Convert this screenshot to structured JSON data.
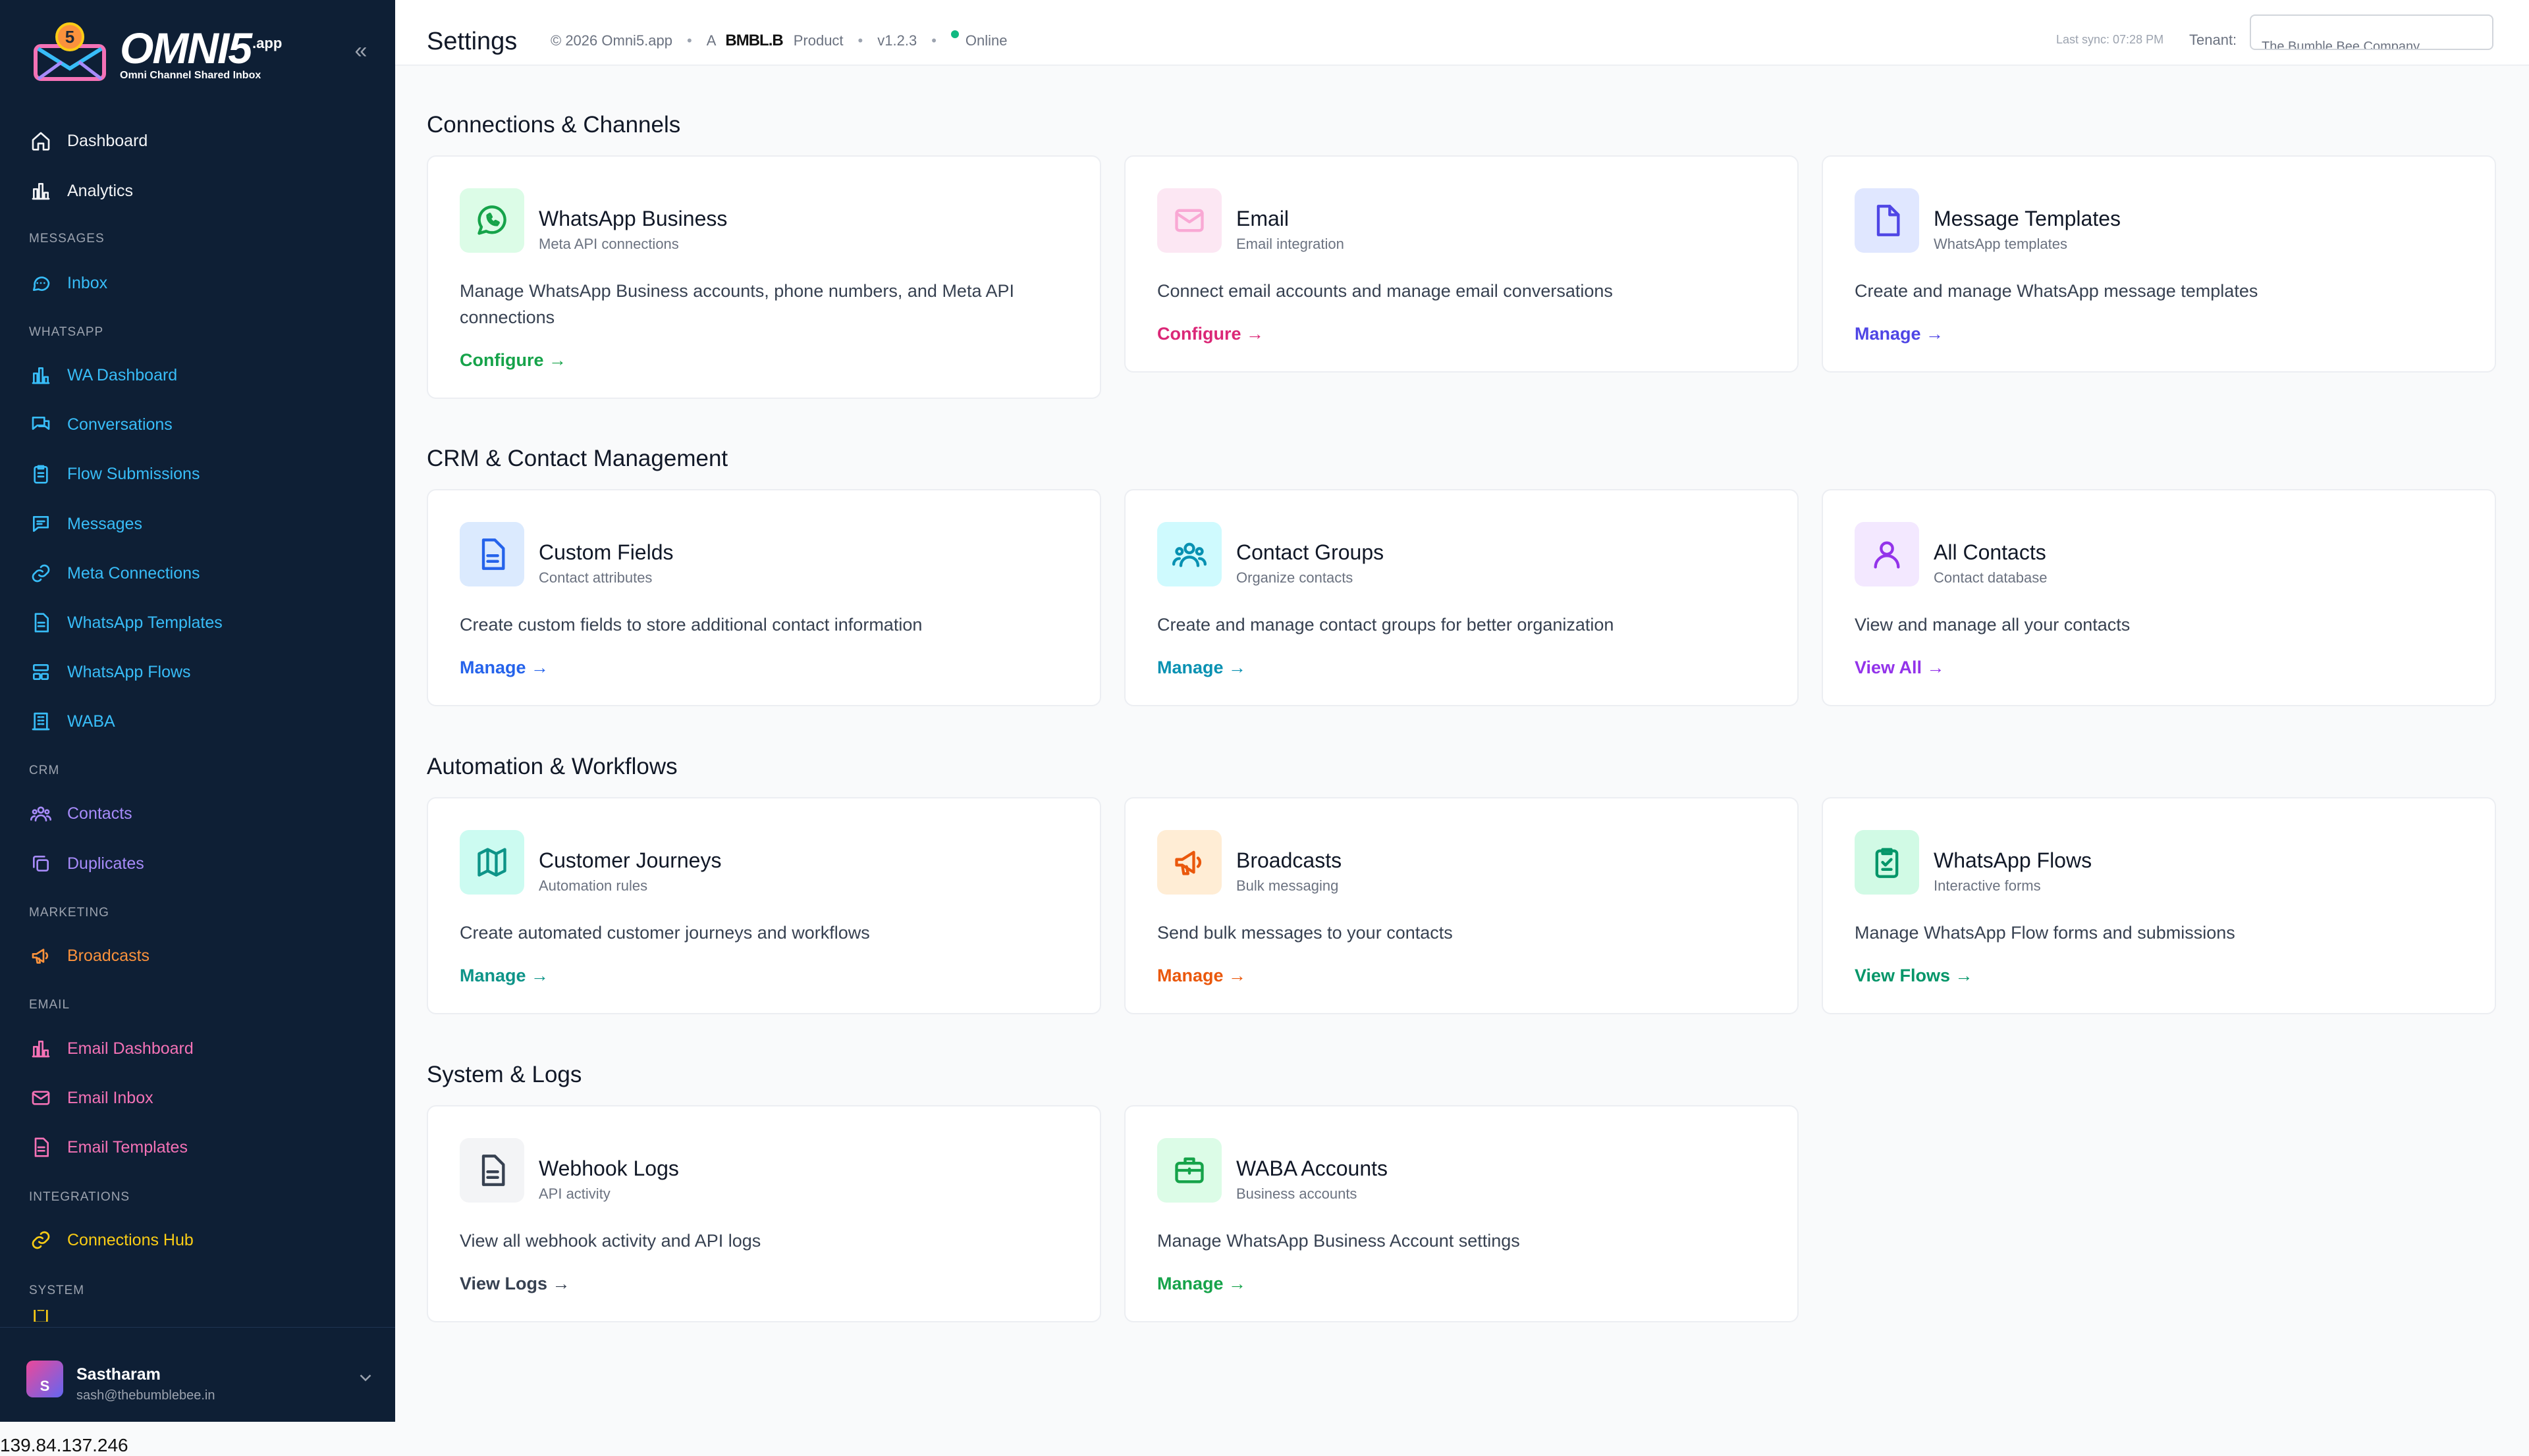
{
  "brand": {
    "name": "OMNI5",
    "suffix": ".app",
    "tagline": "Omni Channel Shared Inbox",
    "badge": "5"
  },
  "sidebar": {
    "top_items": [
      {
        "label": "Dashboard",
        "icon": "home-icon"
      },
      {
        "label": "Analytics",
        "icon": "bar-chart-icon"
      }
    ],
    "sections": {
      "messages": "MESSAGES",
      "whatsapp": "WHATSAPP",
      "crm": "CRM",
      "marketing": "MARKETING",
      "email": "EMAIL",
      "integrations": "INTEGRATIONS",
      "system": "SYSTEM"
    },
    "messages_items": [
      {
        "label": "Inbox",
        "icon": "chat-icon"
      }
    ],
    "whatsapp_items": [
      {
        "label": "WA Dashboard",
        "icon": "bar-chart-icon"
      },
      {
        "label": "Conversations",
        "icon": "conversations-icon"
      },
      {
        "label": "Flow Submissions",
        "icon": "clipboard-icon"
      },
      {
        "label": "Messages",
        "icon": "message-icon"
      },
      {
        "label": "Meta Connections",
        "icon": "link-icon"
      },
      {
        "label": "WhatsApp Templates",
        "icon": "document-icon"
      },
      {
        "label": "WhatsApp Flows",
        "icon": "flows-icon"
      },
      {
        "label": "WABA",
        "icon": "building-icon"
      }
    ],
    "crm_items": [
      {
        "label": "Contacts",
        "icon": "users-icon"
      },
      {
        "label": "Duplicates",
        "icon": "duplicate-icon"
      }
    ],
    "marketing_items": [
      {
        "label": "Broadcasts",
        "icon": "megaphone-icon"
      }
    ],
    "email_items": [
      {
        "label": "Email Dashboard",
        "icon": "bar-chart-icon"
      },
      {
        "label": "Email Inbox",
        "icon": "mail-icon"
      },
      {
        "label": "Email Templates",
        "icon": "document-icon"
      }
    ],
    "integrations_items": [
      {
        "label": "Connections Hub",
        "icon": "link-icon"
      }
    ],
    "user": {
      "name": "Sastharam",
      "email": "sash@thebumblebee.in",
      "initial": "S"
    }
  },
  "header": {
    "title": "Settings",
    "copyright": "© 2026 Omni5.app",
    "a_label": "A",
    "partner": "BMBL.B",
    "product_label": "Product",
    "version": "v1.2.3",
    "status": "Online",
    "last_sync": "Last sync: 07:28 PM",
    "tenant_label": "Tenant:",
    "tenant_value": "The Bumble Bee Company"
  },
  "sections": [
    {
      "title": "Connections & Channels",
      "cards": [
        {
          "title": "WhatsApp Business",
          "subtitle": "Meta API connections",
          "description": "Manage WhatsApp Business accounts, phone numbers, and Meta API connections",
          "link": "Configure →",
          "icon": "whatsapp-icon",
          "accent": "#16a34a",
          "icon_bg": "#dcfce7"
        },
        {
          "title": "Email",
          "subtitle": "Email integration",
          "description": "Connect email accounts and manage email conversations",
          "link": "Configure →",
          "icon": "mail-icon",
          "accent": "#db2777",
          "icon_bg": "#fce7f3"
        },
        {
          "title": "Message Templates",
          "subtitle": "WhatsApp templates",
          "description": "Create and manage WhatsApp message templates",
          "link": "Manage →",
          "icon": "file-icon",
          "accent": "#4f46e5",
          "icon_bg": "#e0e7ff"
        }
      ]
    },
    {
      "title": "CRM & Contact Management",
      "cards": [
        {
          "title": "Custom Fields",
          "subtitle": "Contact attributes",
          "description": "Create custom fields to store additional contact information",
          "link": "Manage →",
          "icon": "document-icon",
          "accent": "#2563eb",
          "icon_bg": "#dbeafe"
        },
        {
          "title": "Contact Groups",
          "subtitle": "Organize contacts",
          "description": "Create and manage contact groups for better organization",
          "link": "Manage →",
          "icon": "users-icon",
          "accent": "#0891b2",
          "icon_bg": "#cffafe"
        },
        {
          "title": "All Contacts",
          "subtitle": "Contact database",
          "description": "View and manage all your contacts",
          "link": "View All →",
          "icon": "user-icon",
          "accent": "#9333ea",
          "icon_bg": "#f3e8ff"
        }
      ]
    },
    {
      "title": "Automation & Workflows",
      "cards": [
        {
          "title": "Customer Journeys",
          "subtitle": "Automation rules",
          "description": "Create automated customer journeys and workflows",
          "link": "Manage →",
          "icon": "map-icon",
          "accent": "#0d9488",
          "icon_bg": "#ccfbf1"
        },
        {
          "title": "Broadcasts",
          "subtitle": "Bulk messaging",
          "description": "Send bulk messages to your contacts",
          "link": "Manage →",
          "icon": "megaphone-icon",
          "accent": "#ea580c",
          "icon_bg": "#ffedd5"
        },
        {
          "title": "WhatsApp Flows",
          "subtitle": "Interactive forms",
          "description": "Manage WhatsApp Flow forms and submissions",
          "link": "View Flows →",
          "icon": "clipboard-icon",
          "accent": "#059669",
          "icon_bg": "#d1fae5"
        }
      ]
    },
    {
      "title": "System & Logs",
      "cards": [
        {
          "title": "Webhook Logs",
          "subtitle": "API activity",
          "description": "View all webhook activity and API logs",
          "link": "View Logs →",
          "icon": "document-icon",
          "accent": "#374151",
          "icon_bg": "#f3f4f6"
        },
        {
          "title": "WABA Accounts",
          "subtitle": "Business accounts",
          "description": "Manage WhatsApp Business Account settings",
          "link": "Manage →",
          "icon": "briefcase-icon",
          "accent": "#16a34a",
          "icon_bg": "#dcfce7"
        }
      ]
    }
  ],
  "footer": {
    "ip": "139.84.137.246"
  }
}
